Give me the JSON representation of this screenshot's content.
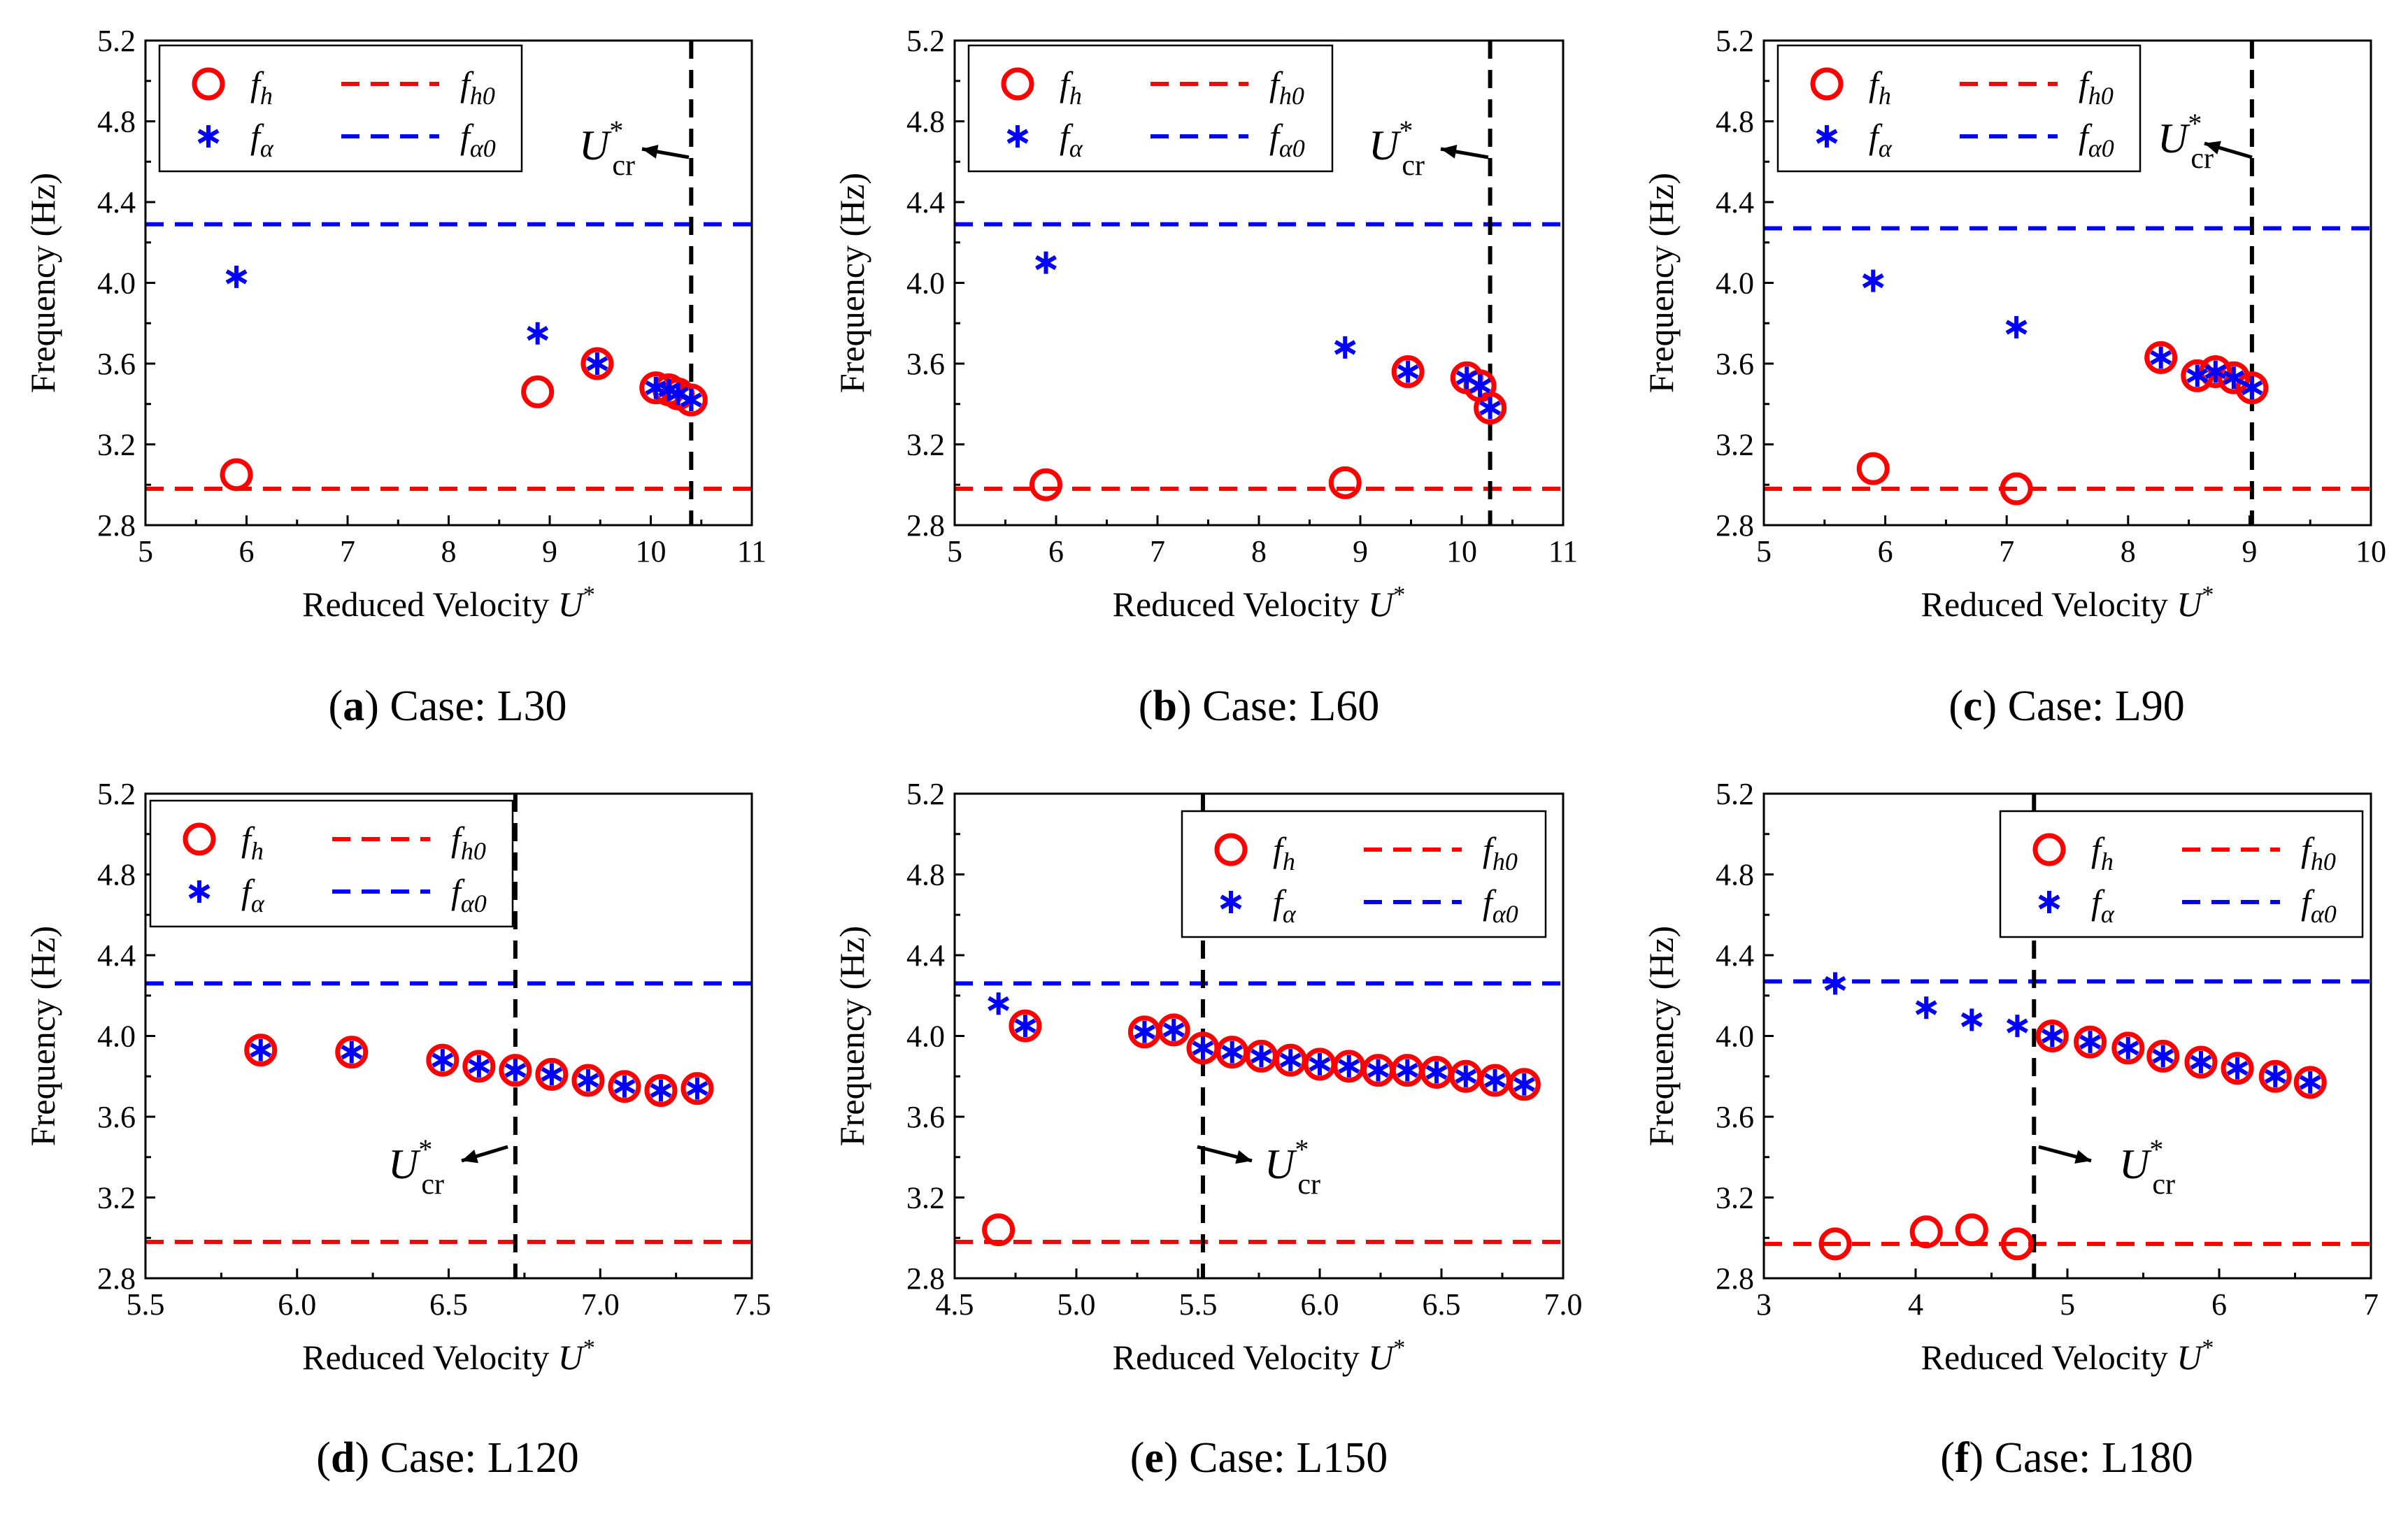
{
  "chart_data": [
    {
      "type": "scatter",
      "panel": "a",
      "caption_letter": "a",
      "caption_text": " Case: L30",
      "xlabel": "Reduced Velocity",
      "xlabel_var": "U",
      "xlabel_sup": "*",
      "ylabel": "Frequency (Hz)",
      "xlim": [
        5,
        11
      ],
      "ylim": [
        2.8,
        5.2
      ],
      "xticks": [
        "5",
        "6",
        "7",
        "8",
        "9",
        "10",
        "11"
      ],
      "yticks": [
        "2.8",
        "3.2",
        "3.6",
        "4.0",
        "4.4",
        "4.8",
        "5.2"
      ],
      "ucr": 10.4,
      "ucr_label_side": "left",
      "fh0": 2.98,
      "fa0": 4.29,
      "fh": [
        [
          5.9,
          3.05
        ],
        [
          8.88,
          3.46
        ],
        [
          9.47,
          3.6
        ],
        [
          10.05,
          3.48
        ],
        [
          10.18,
          3.47
        ],
        [
          10.27,
          3.45
        ],
        [
          10.4,
          3.42
        ]
      ],
      "fa": [
        [
          5.9,
          4.03
        ],
        [
          8.88,
          3.75
        ],
        [
          9.47,
          3.6
        ],
        [
          10.05,
          3.48
        ],
        [
          10.18,
          3.47
        ],
        [
          10.27,
          3.45
        ],
        [
          10.4,
          3.42
        ]
      ]
    },
    {
      "type": "scatter",
      "panel": "b",
      "caption_letter": "b",
      "caption_text": " Case: L60",
      "xlabel": "Reduced Velocity",
      "xlabel_var": "U",
      "xlabel_sup": "*",
      "ylabel": "Frequency (Hz)",
      "xlim": [
        5,
        11
      ],
      "ylim": [
        2.8,
        5.2
      ],
      "xticks": [
        "5",
        "6",
        "7",
        "8",
        "9",
        "10",
        "11"
      ],
      "yticks": [
        "2.8",
        "3.2",
        "3.6",
        "4.0",
        "4.4",
        "4.8",
        "5.2"
      ],
      "ucr": 10.28,
      "ucr_label_side": "left",
      "fh0": 2.98,
      "fa0": 4.29,
      "fh": [
        [
          5.9,
          3.0
        ],
        [
          8.85,
          3.01
        ],
        [
          9.47,
          3.56
        ],
        [
          10.05,
          3.53
        ],
        [
          10.18,
          3.49
        ],
        [
          10.28,
          3.38
        ]
      ],
      "fa": [
        [
          5.9,
          4.1
        ],
        [
          8.85,
          3.68
        ],
        [
          9.47,
          3.56
        ],
        [
          10.05,
          3.53
        ],
        [
          10.18,
          3.49
        ],
        [
          10.28,
          3.38
        ]
      ]
    },
    {
      "type": "scatter",
      "panel": "c",
      "caption_letter": "c",
      "caption_text": " Case: L90",
      "xlabel": "Reduced Velocity",
      "xlabel_var": "U",
      "xlabel_sup": "*",
      "ylabel": "Frequency (Hz)",
      "xlim": [
        5,
        10
      ],
      "ylim": [
        2.8,
        5.2
      ],
      "xticks": [
        "5",
        "6",
        "7",
        "8",
        "9",
        "10"
      ],
      "yticks": [
        "2.8",
        "3.2",
        "3.6",
        "4.0",
        "4.4",
        "4.8",
        "5.2"
      ],
      "ucr": 9.02,
      "ucr_label_side": "left",
      "fh0": 2.98,
      "fa0": 4.27,
      "fh": [
        [
          5.9,
          3.08
        ],
        [
          7.08,
          2.98
        ],
        [
          8.27,
          3.63
        ],
        [
          8.57,
          3.54
        ],
        [
          8.72,
          3.56
        ],
        [
          8.87,
          3.53
        ],
        [
          9.02,
          3.48
        ]
      ],
      "fa": [
        [
          5.9,
          4.01
        ],
        [
          7.08,
          3.78
        ],
        [
          8.27,
          3.63
        ],
        [
          8.57,
          3.54
        ],
        [
          8.72,
          3.56
        ],
        [
          8.87,
          3.53
        ],
        [
          9.02,
          3.48
        ]
      ]
    },
    {
      "type": "scatter",
      "panel": "d",
      "caption_letter": "d",
      "caption_text": " Case: L120",
      "xlabel": "Reduced Velocity",
      "xlabel_var": "U",
      "xlabel_sup": "*",
      "ylabel": "Frequency (Hz)",
      "xlim": [
        5.5,
        7.5
      ],
      "ylim": [
        2.8,
        5.2
      ],
      "xticks": [
        "5.5",
        "6.0",
        "6.5",
        "7.0",
        "7.5"
      ],
      "yticks": [
        "2.8",
        "3.2",
        "3.6",
        "4.0",
        "4.4",
        "4.8",
        "5.2"
      ],
      "ucr": 6.72,
      "ucr_label_side": "left",
      "fh0": 2.98,
      "fa0": 4.26,
      "fh": [
        [
          5.88,
          3.93
        ],
        [
          6.18,
          3.92
        ],
        [
          6.48,
          3.88
        ],
        [
          6.6,
          3.85
        ],
        [
          6.72,
          3.83
        ],
        [
          6.84,
          3.81
        ],
        [
          6.96,
          3.78
        ],
        [
          7.08,
          3.75
        ],
        [
          7.2,
          3.73
        ],
        [
          7.32,
          3.74
        ]
      ],
      "fa": [
        [
          5.88,
          3.93
        ],
        [
          6.18,
          3.92
        ],
        [
          6.48,
          3.88
        ],
        [
          6.6,
          3.85
        ],
        [
          6.72,
          3.83
        ],
        [
          6.84,
          3.81
        ],
        [
          6.96,
          3.78
        ],
        [
          7.08,
          3.75
        ],
        [
          7.2,
          3.73
        ],
        [
          7.32,
          3.74
        ]
      ]
    },
    {
      "type": "scatter",
      "panel": "e",
      "caption_letter": "e",
      "caption_text": " Case: L150",
      "xlabel": "Reduced Velocity",
      "xlabel_var": "U",
      "xlabel_sup": "*",
      "ylabel": "Frequency (Hz)",
      "xlim": [
        4.5,
        7.0
      ],
      "ylim": [
        2.8,
        5.2
      ],
      "xticks": [
        "4.5",
        "5.0",
        "5.5",
        "6.0",
        "6.5",
        "7.0"
      ],
      "yticks": [
        "2.8",
        "3.2",
        "3.6",
        "4.0",
        "4.4",
        "4.8",
        "5.2"
      ],
      "ucr": 5.52,
      "ucr_label_side": "right",
      "fh0": 2.98,
      "fa0": 4.26,
      "fh": [
        [
          4.68,
          3.04
        ],
        [
          4.79,
          4.05
        ],
        [
          5.28,
          4.02
        ],
        [
          5.4,
          4.03
        ],
        [
          5.52,
          3.94
        ],
        [
          5.64,
          3.92
        ],
        [
          5.76,
          3.9
        ],
        [
          5.88,
          3.88
        ],
        [
          6.0,
          3.86
        ],
        [
          6.12,
          3.85
        ],
        [
          6.24,
          3.83
        ],
        [
          6.36,
          3.83
        ],
        [
          6.48,
          3.82
        ],
        [
          6.6,
          3.8
        ],
        [
          6.72,
          3.78
        ],
        [
          6.84,
          3.76
        ]
      ],
      "fa": [
        [
          4.68,
          4.16
        ],
        [
          4.79,
          4.05
        ],
        [
          5.28,
          4.02
        ],
        [
          5.4,
          4.03
        ],
        [
          5.52,
          3.94
        ],
        [
          5.64,
          3.92
        ],
        [
          5.76,
          3.9
        ],
        [
          5.88,
          3.88
        ],
        [
          6.0,
          3.86
        ],
        [
          6.12,
          3.85
        ],
        [
          6.24,
          3.83
        ],
        [
          6.36,
          3.83
        ],
        [
          6.48,
          3.82
        ],
        [
          6.6,
          3.8
        ],
        [
          6.72,
          3.78
        ],
        [
          6.84,
          3.76
        ]
      ]
    },
    {
      "type": "scatter",
      "panel": "f",
      "caption_letter": "f",
      "caption_text": " Case: L180",
      "xlabel": "Reduced Velocity",
      "xlabel_var": "U",
      "xlabel_sup": "*",
      "ylabel": "Frequency (Hz)",
      "xlim": [
        3,
        7
      ],
      "ylim": [
        2.8,
        5.2
      ],
      "xticks": [
        "3",
        "4",
        "5",
        "6",
        "7"
      ],
      "yticks": [
        "2.8",
        "3.2",
        "3.6",
        "4.0",
        "4.4",
        "4.8",
        "5.2"
      ],
      "ucr": 4.78,
      "ucr_label_side": "right",
      "fh0": 2.97,
      "fa0": 4.27,
      "fh": [
        [
          3.47,
          2.97
        ],
        [
          4.07,
          3.03
        ],
        [
          4.37,
          3.04
        ],
        [
          4.67,
          2.97
        ],
        [
          4.9,
          4.0
        ],
        [
          5.15,
          3.97
        ],
        [
          5.4,
          3.94
        ],
        [
          5.63,
          3.9
        ],
        [
          5.88,
          3.87
        ],
        [
          6.12,
          3.84
        ],
        [
          6.37,
          3.8
        ],
        [
          6.6,
          3.77
        ]
      ],
      "fa": [
        [
          3.47,
          4.26
        ],
        [
          4.07,
          4.14
        ],
        [
          4.37,
          4.08
        ],
        [
          4.67,
          4.05
        ],
        [
          4.9,
          4.0
        ],
        [
          5.15,
          3.97
        ],
        [
          5.4,
          3.94
        ],
        [
          5.63,
          3.9
        ],
        [
          5.88,
          3.87
        ],
        [
          6.12,
          3.84
        ],
        [
          6.37,
          3.8
        ],
        [
          6.6,
          3.77
        ]
      ]
    }
  ],
  "legend": {
    "fh": "f",
    "fh_sub": "h",
    "fa": "f",
    "fa_sub": "α",
    "fh0": "f",
    "fh0_sub": "h0",
    "fa0": "f",
    "fa0_sub": "α0"
  },
  "ucr_label": {
    "base": "U",
    "sup": "*",
    "sub": "cr"
  },
  "colors": {
    "fh": "#ff0000",
    "fa": "#0000ff",
    "fh0": "#ff0000",
    "fa0": "#0000ff",
    "ucr": "#000000"
  }
}
